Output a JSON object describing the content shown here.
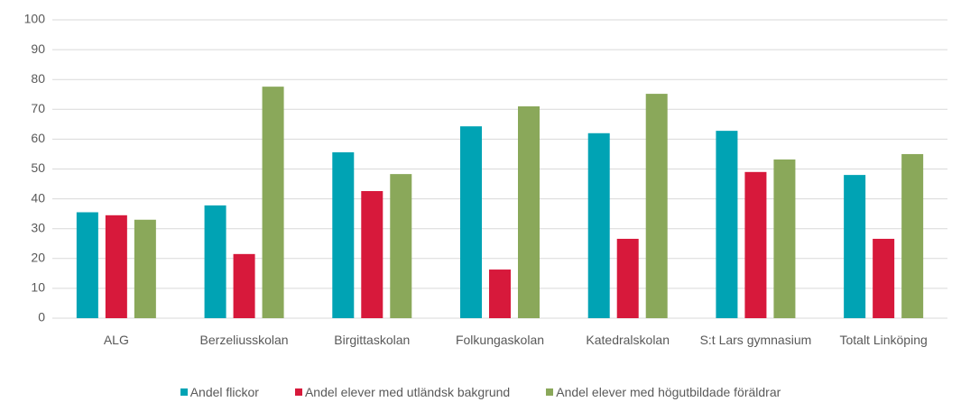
{
  "chart_data": {
    "type": "bar",
    "categories": [
      "ALG",
      "Berzeliusskolan",
      "Birgittaskolan",
      "Folkungaskolan",
      "Katedralskolan",
      "S:t Lars gymnasium",
      "Totalt Linköping"
    ],
    "series": [
      {
        "name": "Andel flickor",
        "color": "#00a3b4",
        "values": [
          35.5,
          37.8,
          55.6,
          64.3,
          62,
          62.8,
          48
        ]
      },
      {
        "name": "Andel elever med utländsk bakgrund",
        "color": "#d7193b",
        "values": [
          34.5,
          21.5,
          42.6,
          16.3,
          26.6,
          49,
          26.6
        ]
      },
      {
        "name": "Andel elever med högutbildade föräldrar",
        "color": "#8aa85a",
        "values": [
          33,
          77.6,
          48.3,
          71,
          75.2,
          53.2,
          55
        ]
      }
    ],
    "ylim": [
      0,
      100
    ],
    "yticks": [
      0,
      10,
      20,
      30,
      40,
      50,
      60,
      70,
      80,
      90,
      100
    ],
    "grid": true,
    "legend": "bottom"
  }
}
